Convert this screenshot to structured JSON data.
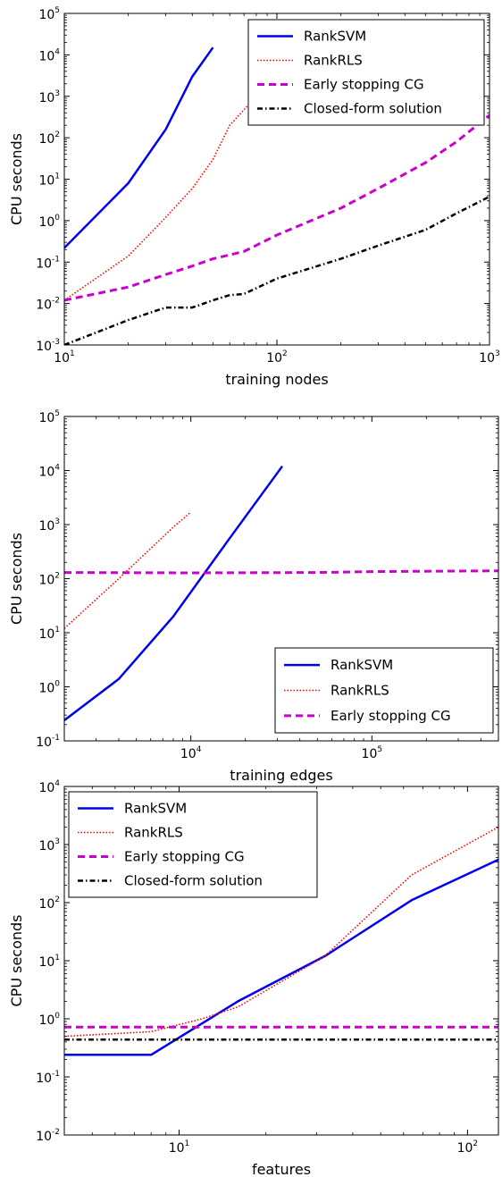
{
  "colors": {
    "RankSVM": "#0000ee",
    "RankRLS": "#ff0000",
    "Early stopping CG": "#cc00cc",
    "Closed-form solution": "#000000"
  },
  "chart_data": [
    {
      "type": "line",
      "xscale": "log",
      "yscale": "log",
      "xlim": [
        10,
        1000
      ],
      "ylim": [
        0.001,
        100000
      ],
      "xlabel": "training nodes",
      "ylabel": "CPU seconds",
      "xticks": [
        {
          "base": "10",
          "exp": "1",
          "value": 10
        },
        {
          "base": "10",
          "exp": "2",
          "value": 100
        },
        {
          "base": "10",
          "exp": "3",
          "value": 1000
        }
      ],
      "yticks": [
        {
          "base": "10",
          "exp": "-3",
          "value": 0.001
        },
        {
          "base": "10",
          "exp": "-2",
          "value": 0.01
        },
        {
          "base": "10",
          "exp": "-1",
          "value": 0.1
        },
        {
          "base": "10",
          "exp": "0",
          "value": 1
        },
        {
          "base": "10",
          "exp": "1",
          "value": 10
        },
        {
          "base": "10",
          "exp": "2",
          "value": 100
        },
        {
          "base": "10",
          "exp": "3",
          "value": 1000
        },
        {
          "base": "10",
          "exp": "4",
          "value": 10000
        },
        {
          "base": "10",
          "exp": "5",
          "value": 100000
        }
      ],
      "legend_position": "upper-right",
      "series": [
        {
          "name": "RankSVM",
          "x": [
            10,
            20,
            30,
            40,
            50
          ],
          "y": [
            0.22,
            8,
            160,
            3000,
            15000
          ]
        },
        {
          "name": "RankRLS",
          "x": [
            10,
            20,
            30,
            40,
            50,
            60,
            80
          ],
          "y": [
            0.012,
            0.14,
            1.2,
            6,
            30,
            200,
            1000
          ]
        },
        {
          "name": "Early stopping CG",
          "x": [
            10,
            20,
            30,
            40,
            50,
            70,
            100,
            200,
            300,
            500,
            700,
            1000
          ],
          "y": [
            0.012,
            0.025,
            0.05,
            0.08,
            0.12,
            0.18,
            0.45,
            2,
            6,
            25,
            80,
            350
          ]
        },
        {
          "name": "Closed-form solution",
          "x": [
            10,
            20,
            30,
            40,
            50,
            60,
            70,
            100,
            200,
            300,
            500,
            700,
            1000
          ],
          "y": [
            0.001,
            0.004,
            0.008,
            0.008,
            0.012,
            0.016,
            0.017,
            0.04,
            0.12,
            0.25,
            0.6,
            1.5,
            3.8
          ]
        }
      ]
    },
    {
      "type": "line",
      "xscale": "log",
      "yscale": "log",
      "xlim": [
        2000,
        500000
      ],
      "ylim": [
        0.1,
        100000
      ],
      "xlabel": "training edges",
      "ylabel": "CPU seconds",
      "xticks": [
        {
          "base": "10",
          "exp": "4",
          "value": 10000
        },
        {
          "base": "10",
          "exp": "5",
          "value": 100000
        }
      ],
      "yticks": [
        {
          "base": "10",
          "exp": "-1",
          "value": 0.1
        },
        {
          "base": "10",
          "exp": "0",
          "value": 1
        },
        {
          "base": "10",
          "exp": "1",
          "value": 10
        },
        {
          "base": "10",
          "exp": "2",
          "value": 100
        },
        {
          "base": "10",
          "exp": "3",
          "value": 1000
        },
        {
          "base": "10",
          "exp": "4",
          "value": 10000
        },
        {
          "base": "10",
          "exp": "5",
          "value": 100000
        }
      ],
      "legend_position": "lower-right",
      "series": [
        {
          "name": "RankSVM",
          "x": [
            2000,
            4000,
            8000,
            16000,
            32000
          ],
          "y": [
            0.24,
            1.4,
            20,
            500,
            12000
          ]
        },
        {
          "name": "RankRLS",
          "x": [
            2000,
            4000,
            8000,
            10000
          ],
          "y": [
            12,
            100,
            900,
            1700
          ]
        },
        {
          "name": "Early stopping CG",
          "x": [
            2000,
            10000,
            50000,
            100000,
            500000
          ],
          "y": [
            130,
            128,
            130,
            135,
            140
          ]
        }
      ]
    },
    {
      "type": "line",
      "xscale": "log",
      "yscale": "log",
      "xlim": [
        4,
        128
      ],
      "ylim": [
        0.01,
        10000
      ],
      "xlabel": "features",
      "ylabel": "CPU seconds",
      "xticks": [
        {
          "base": "10",
          "exp": "1",
          "value": 10
        },
        {
          "base": "10",
          "exp": "2",
          "value": 100
        }
      ],
      "yticks": [
        {
          "base": "10",
          "exp": "-2",
          "value": 0.01
        },
        {
          "base": "10",
          "exp": "-1",
          "value": 0.1
        },
        {
          "base": "10",
          "exp": "0",
          "value": 1
        },
        {
          "base": "10",
          "exp": "1",
          "value": 10
        },
        {
          "base": "10",
          "exp": "2",
          "value": 100
        },
        {
          "base": "10",
          "exp": "3",
          "value": 1000
        },
        {
          "base": "10",
          "exp": "4",
          "value": 10000
        }
      ],
      "legend_position": "upper-left",
      "series": [
        {
          "name": "RankSVM",
          "x": [
            4,
            8,
            16,
            32,
            64,
            128
          ],
          "y": [
            0.24,
            0.24,
            2.0,
            12,
            110,
            550
          ]
        },
        {
          "name": "RankRLS",
          "x": [
            4,
            8,
            12,
            16,
            32,
            64,
            128
          ],
          "y": [
            0.5,
            0.6,
            1.0,
            1.6,
            12,
            300,
            2000
          ]
        },
        {
          "name": "Early stopping CG",
          "x": [
            4,
            128
          ],
          "y": [
            0.72,
            0.72
          ]
        },
        {
          "name": "Closed-form solution",
          "x": [
            4,
            128
          ],
          "y": [
            0.44,
            0.44
          ]
        }
      ]
    }
  ]
}
